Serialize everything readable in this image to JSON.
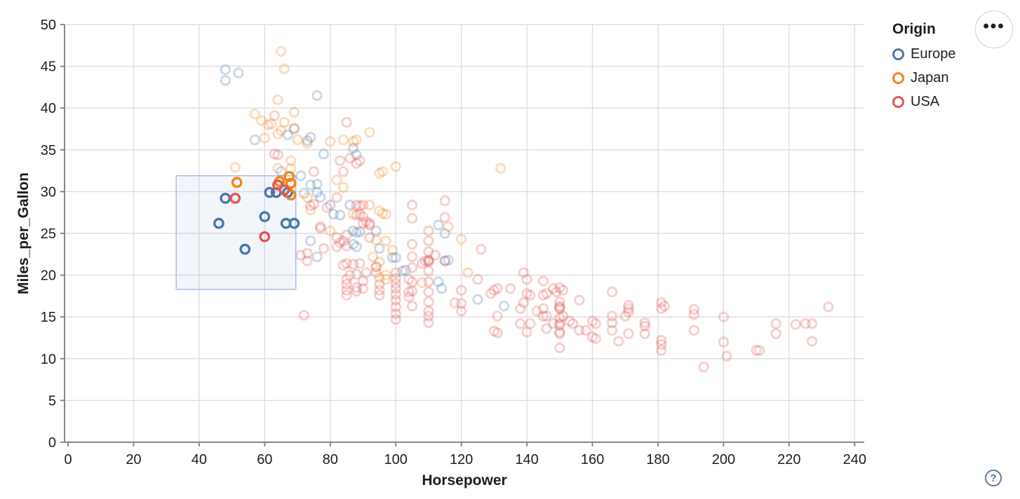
{
  "page": {
    "background": "#ffffff"
  },
  "actions": {
    "more_options_icon": "•••",
    "help_icon": "?"
  },
  "chart_data": {
    "type": "scatter",
    "title": "",
    "xlabel": "Horsepower",
    "ylabel": "Miles_per_Gallon",
    "xlim": [
      0,
      243
    ],
    "ylim": [
      0,
      50
    ],
    "x_ticks": [
      0,
      20,
      40,
      60,
      80,
      100,
      120,
      140,
      160,
      180,
      200,
      220,
      240
    ],
    "y_ticks": [
      0,
      5,
      10,
      15,
      20,
      25,
      30,
      35,
      40,
      45,
      50
    ],
    "grid": true,
    "grid_color": "#dddddd",
    "axis_color": "#888888",
    "label_color": "#1b1e23",
    "unselected_opacity": 0.28,
    "legend": {
      "title": "Origin",
      "position": "top-right",
      "entries": [
        {
          "label": "Europe",
          "color": "#4c78a8"
        },
        {
          "label": "Japan",
          "color": "#f58518"
        },
        {
          "label": "USA",
          "color": "#e45756"
        }
      ]
    },
    "selection_brush": {
      "x_range": [
        33,
        69.5
      ],
      "y_range": [
        18.3,
        31.9
      ],
      "fill": "rgba(130,160,210,0.10)",
      "border": "#aabfe0"
    },
    "series": [
      {
        "name": "Europe",
        "color": "#4c78a8",
        "selected": [
          [
            46,
            26.2
          ],
          [
            48,
            29.2
          ],
          [
            54,
            23.1
          ],
          [
            60,
            27.0
          ],
          [
            61.5,
            29.9
          ],
          [
            63.5,
            29.9
          ],
          [
            67,
            29.9
          ],
          [
            66.5,
            26.2
          ],
          [
            69,
            26.2
          ]
        ],
        "unselected": [
          [
            48,
            44.6
          ],
          [
            52,
            44.2
          ],
          [
            48,
            43.3
          ],
          [
            76,
            41.5
          ],
          [
            69,
            37.5
          ],
          [
            67,
            36.8
          ],
          [
            57,
            36.2
          ],
          [
            73,
            36.1
          ],
          [
            74,
            36.5
          ],
          [
            78,
            34.5
          ],
          [
            87,
            35.2
          ],
          [
            88,
            34.4
          ],
          [
            65,
            32.4
          ],
          [
            71,
            31.9
          ],
          [
            74,
            30.8
          ],
          [
            72,
            29.8
          ],
          [
            76,
            30.9
          ],
          [
            76,
            29.9
          ],
          [
            77,
            29.3
          ],
          [
            80,
            28.4
          ],
          [
            81,
            27.3
          ],
          [
            83,
            27.2
          ],
          [
            86,
            28.4
          ],
          [
            87,
            25.3
          ],
          [
            88,
            25.1
          ],
          [
            89,
            25.2
          ],
          [
            94,
            25.3
          ],
          [
            87,
            23.7
          ],
          [
            88,
            23.4
          ],
          [
            74,
            24.1
          ],
          [
            76,
            22.2
          ],
          [
            95,
            23.2
          ],
          [
            99,
            22.1
          ],
          [
            100,
            22.1
          ],
          [
            102,
            20.5
          ],
          [
            103,
            20.6
          ],
          [
            113,
            26
          ],
          [
            115,
            25
          ],
          [
            113,
            19.2
          ],
          [
            114,
            18.4
          ],
          [
            115,
            21.7
          ],
          [
            116,
            21.8
          ],
          [
            125,
            17.1
          ],
          [
            133,
            16.3
          ]
        ]
      },
      {
        "name": "Japan",
        "color": "#f58518",
        "selected": [
          [
            51.5,
            31.1
          ],
          [
            64.5,
            31.2
          ],
          [
            67.5,
            31.8
          ],
          [
            68,
            31.0
          ],
          [
            68,
            29.6
          ]
        ],
        "unselected": [
          [
            65,
            46.8
          ],
          [
            66,
            44.7
          ],
          [
            64,
            41
          ],
          [
            69,
            39.5
          ],
          [
            57,
            39.3
          ],
          [
            59,
            38.5
          ],
          [
            61,
            38
          ],
          [
            62,
            38.1
          ],
          [
            66,
            38.3
          ],
          [
            69,
            37.6
          ],
          [
            65,
            37.3
          ],
          [
            60,
            36.4
          ],
          [
            64,
            36.9
          ],
          [
            70,
            36.2
          ],
          [
            73,
            35.8
          ],
          [
            80,
            36
          ],
          [
            84,
            36.2
          ],
          [
            87,
            36
          ],
          [
            88,
            36.2
          ],
          [
            92,
            37.1
          ],
          [
            51,
            32.9
          ],
          [
            64,
            32.8
          ],
          [
            68,
            33.7
          ],
          [
            68,
            32.8
          ],
          [
            82,
            31.4
          ],
          [
            84,
            30.5
          ],
          [
            95,
            32.2
          ],
          [
            96,
            32.4
          ],
          [
            100,
            33
          ],
          [
            132,
            32.8
          ],
          [
            73,
            29.3
          ],
          [
            74,
            27.8
          ],
          [
            87,
            27.3
          ],
          [
            92,
            28.4
          ],
          [
            95,
            27.7
          ],
          [
            96,
            27.4
          ],
          [
            97,
            27.3
          ],
          [
            80,
            25.3
          ],
          [
            94,
            24.2
          ],
          [
            97,
            24.1
          ],
          [
            99,
            23
          ],
          [
            93,
            22.2
          ],
          [
            95,
            21.6
          ],
          [
            94,
            21
          ],
          [
            95,
            19.7
          ],
          [
            97,
            20
          ],
          [
            97,
            19.5
          ],
          [
            108,
            19.1
          ],
          [
            110,
            21.6
          ],
          [
            116,
            25.8
          ],
          [
            120,
            24.3
          ],
          [
            122,
            20.3
          ]
        ]
      },
      {
        "name": "USA",
        "color": "#e45756",
        "selected": [
          [
            51,
            29.2
          ],
          [
            60,
            24.6
          ],
          [
            64,
            30.8
          ],
          [
            66,
            30.2
          ]
        ],
        "unselected": [
          [
            63,
            39.1
          ],
          [
            85,
            38.3
          ],
          [
            63,
            34.5
          ],
          [
            64,
            34.4
          ],
          [
            83,
            33.7
          ],
          [
            86,
            34
          ],
          [
            88,
            33.4
          ],
          [
            89,
            33.7
          ],
          [
            84,
            32.4
          ],
          [
            75,
            32.4
          ],
          [
            75,
            28.5
          ],
          [
            74,
            28.3
          ],
          [
            79,
            28.1
          ],
          [
            82,
            29.3
          ],
          [
            88,
            28.4
          ],
          [
            89,
            28.3
          ],
          [
            90,
            28.4
          ],
          [
            88,
            27.2
          ],
          [
            89,
            27.3
          ],
          [
            90,
            27
          ],
          [
            91,
            26.4
          ],
          [
            90,
            26.2
          ],
          [
            92,
            26.2
          ],
          [
            92,
            26
          ],
          [
            77,
            25.8
          ],
          [
            77,
            25.6
          ],
          [
            82,
            24.5
          ],
          [
            83,
            23.9
          ],
          [
            85,
            23.5
          ],
          [
            92,
            24.5
          ],
          [
            105,
            28.4
          ],
          [
            105,
            26.8
          ],
          [
            115,
            28.9
          ],
          [
            115,
            26.9
          ],
          [
            105,
            23.7
          ],
          [
            105,
            22.2
          ],
          [
            112,
            22.4
          ],
          [
            115,
            21.7
          ],
          [
            126,
            23.1
          ],
          [
            71,
            22.4
          ],
          [
            73,
            22.6
          ],
          [
            73,
            21.7
          ],
          [
            78,
            23.2
          ],
          [
            82,
            23.4
          ],
          [
            84,
            24.1
          ],
          [
            85,
            24.8
          ],
          [
            85,
            21.4
          ],
          [
            84,
            21.2
          ],
          [
            87,
            21.3
          ],
          [
            89,
            21.4
          ],
          [
            86,
            20
          ],
          [
            88,
            20.1
          ],
          [
            91,
            20.3
          ],
          [
            85,
            19.5
          ],
          [
            85,
            18.9
          ],
          [
            85,
            18.2
          ],
          [
            85,
            17.6
          ],
          [
            88,
            18.5
          ],
          [
            88,
            18.1
          ],
          [
            90,
            19.3
          ],
          [
            90,
            18.4
          ],
          [
            94,
            21
          ],
          [
            94,
            20.3
          ],
          [
            95,
            18.9
          ],
          [
            95,
            18.2
          ],
          [
            95,
            17.6
          ],
          [
            100,
            20.3
          ],
          [
            100,
            19.6
          ],
          [
            100,
            19
          ],
          [
            100,
            18.4
          ],
          [
            100,
            17.7
          ],
          [
            100,
            17
          ],
          [
            100,
            16.2
          ],
          [
            100,
            15.4
          ],
          [
            100,
            14.7
          ],
          [
            104,
            19.5
          ],
          [
            104,
            18
          ],
          [
            104,
            17.4
          ],
          [
            105,
            20.9
          ],
          [
            105,
            19.2
          ],
          [
            105,
            18.1
          ],
          [
            105,
            16.3
          ],
          [
            108,
            21.4
          ],
          [
            109,
            21.7
          ],
          [
            110,
            21.8
          ],
          [
            110,
            25.3
          ],
          [
            110,
            24.1
          ],
          [
            110,
            22.8
          ],
          [
            110,
            21.7
          ],
          [
            110,
            20.5
          ],
          [
            110,
            19.2
          ],
          [
            110,
            18
          ],
          [
            110,
            16.8
          ],
          [
            110,
            15.7
          ],
          [
            110,
            15.1
          ],
          [
            110,
            14.3
          ],
          [
            72,
            15.2
          ],
          [
            118,
            16.7
          ],
          [
            120,
            18.2
          ],
          [
            120,
            16.6
          ],
          [
            120,
            15.7
          ],
          [
            125,
            19.5
          ],
          [
            129,
            17.8
          ],
          [
            130,
            18.2
          ],
          [
            131,
            18.4
          ],
          [
            131,
            15.1
          ],
          [
            130,
            13.3
          ],
          [
            131,
            13.1
          ],
          [
            135,
            18.4
          ],
          [
            138,
            14.2
          ],
          [
            138,
            16
          ],
          [
            139,
            16.7
          ],
          [
            139,
            20.3
          ],
          [
            140,
            19.5
          ],
          [
            140,
            17.8
          ],
          [
            140,
            13.2
          ],
          [
            141,
            17.6
          ],
          [
            141,
            14.2
          ],
          [
            143,
            15.7
          ],
          [
            145,
            19.3
          ],
          [
            145,
            17.6
          ],
          [
            145,
            16
          ],
          [
            145,
            15.1
          ],
          [
            146,
            17.8
          ],
          [
            146,
            15.1
          ],
          [
            146,
            13.6
          ],
          [
            148,
            18.4
          ],
          [
            148,
            14.2
          ],
          [
            149,
            18
          ],
          [
            150,
            18.5
          ],
          [
            150,
            16.8
          ],
          [
            150,
            16.3
          ],
          [
            150,
            16.1
          ],
          [
            150,
            16
          ],
          [
            150,
            14.9
          ],
          [
            150,
            14.2
          ],
          [
            150,
            14
          ],
          [
            150,
            13.2
          ],
          [
            150,
            13
          ],
          [
            150,
            11.3
          ],
          [
            151,
            18.2
          ],
          [
            151,
            15.1
          ],
          [
            153,
            14.5
          ],
          [
            154,
            14.2
          ],
          [
            156,
            17
          ],
          [
            156,
            13.4
          ],
          [
            158,
            13.4
          ],
          [
            160,
            14.5
          ],
          [
            160,
            12.6
          ],
          [
            161,
            14.2
          ],
          [
            161,
            12.4
          ],
          [
            166,
            18
          ],
          [
            166,
            15.1
          ],
          [
            166,
            14.3
          ],
          [
            166,
            13.4
          ],
          [
            168,
            12.1
          ],
          [
            170,
            15.1
          ],
          [
            171,
            16.4
          ],
          [
            171,
            16
          ],
          [
            171,
            15.6
          ],
          [
            171,
            13
          ],
          [
            176,
            14.3
          ],
          [
            176,
            13.9
          ],
          [
            176,
            13
          ],
          [
            181,
            16.7
          ],
          [
            181,
            16
          ],
          [
            181,
            12.2
          ],
          [
            181,
            11.7
          ],
          [
            181,
            11
          ],
          [
            182,
            16.3
          ],
          [
            191,
            15.9
          ],
          [
            191,
            15.3
          ],
          [
            191,
            13.4
          ],
          [
            194,
            9
          ],
          [
            200,
            15
          ],
          [
            200,
            12
          ],
          [
            201,
            10.3
          ],
          [
            210,
            11
          ],
          [
            211,
            11
          ],
          [
            216,
            14.2
          ],
          [
            216,
            13
          ],
          [
            222,
            14.1
          ],
          [
            225,
            14.2
          ],
          [
            227,
            14.2
          ],
          [
            227,
            12.1
          ],
          [
            232,
            16.2
          ]
        ]
      }
    ]
  }
}
